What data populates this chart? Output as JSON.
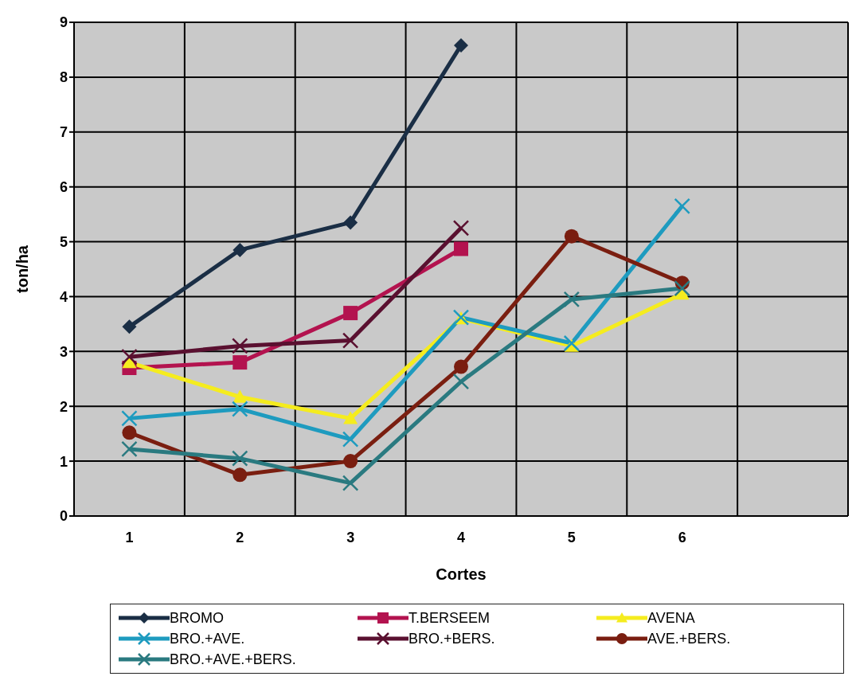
{
  "chart_data": {
    "type": "line",
    "xlabel": "Cortes",
    "ylabel": "ton/ha",
    "categories": [
      "1",
      "2",
      "3",
      "4",
      "5",
      "6",
      null
    ],
    "ylim": [
      0,
      9
    ],
    "yticks": [
      0,
      1,
      2,
      3,
      4,
      5,
      6,
      7,
      8,
      9
    ],
    "grid": true,
    "legend": "bottom",
    "series": [
      {
        "name": "BROMO",
        "color": "#1a2e45",
        "marker": "diamond",
        "values": [
          3.45,
          4.85,
          5.35,
          8.58,
          null,
          null,
          null
        ]
      },
      {
        "name": "T.BERSEEM",
        "color": "#b3134f",
        "marker": "square",
        "values": [
          2.7,
          2.8,
          3.7,
          4.87,
          null,
          null,
          null
        ]
      },
      {
        "name": "AVENA",
        "color": "#f5ec1e",
        "marker": "triangle",
        "values": [
          2.8,
          2.17,
          1.78,
          3.6,
          3.1,
          4.05,
          null
        ]
      },
      {
        "name": "BRO.+AVE.",
        "color": "#1e9bbf",
        "marker": "cross",
        "values": [
          1.78,
          1.95,
          1.4,
          3.62,
          3.15,
          5.65,
          null
        ]
      },
      {
        "name": "BRO.+BERS.",
        "color": "#5a1030",
        "marker": "cross",
        "values": [
          2.9,
          3.1,
          3.2,
          5.25,
          null,
          null,
          null
        ]
      },
      {
        "name": "AVE.+BERS.",
        "color": "#7a1e10",
        "marker": "circle",
        "values": [
          1.52,
          0.75,
          1.0,
          2.72,
          5.1,
          4.25,
          null
        ]
      },
      {
        "name": "BRO.+AVE.+BERS.",
        "color": "#2a7a80",
        "marker": "cross",
        "values": [
          1.22,
          1.05,
          0.6,
          2.45,
          3.95,
          4.15,
          null
        ]
      }
    ]
  }
}
